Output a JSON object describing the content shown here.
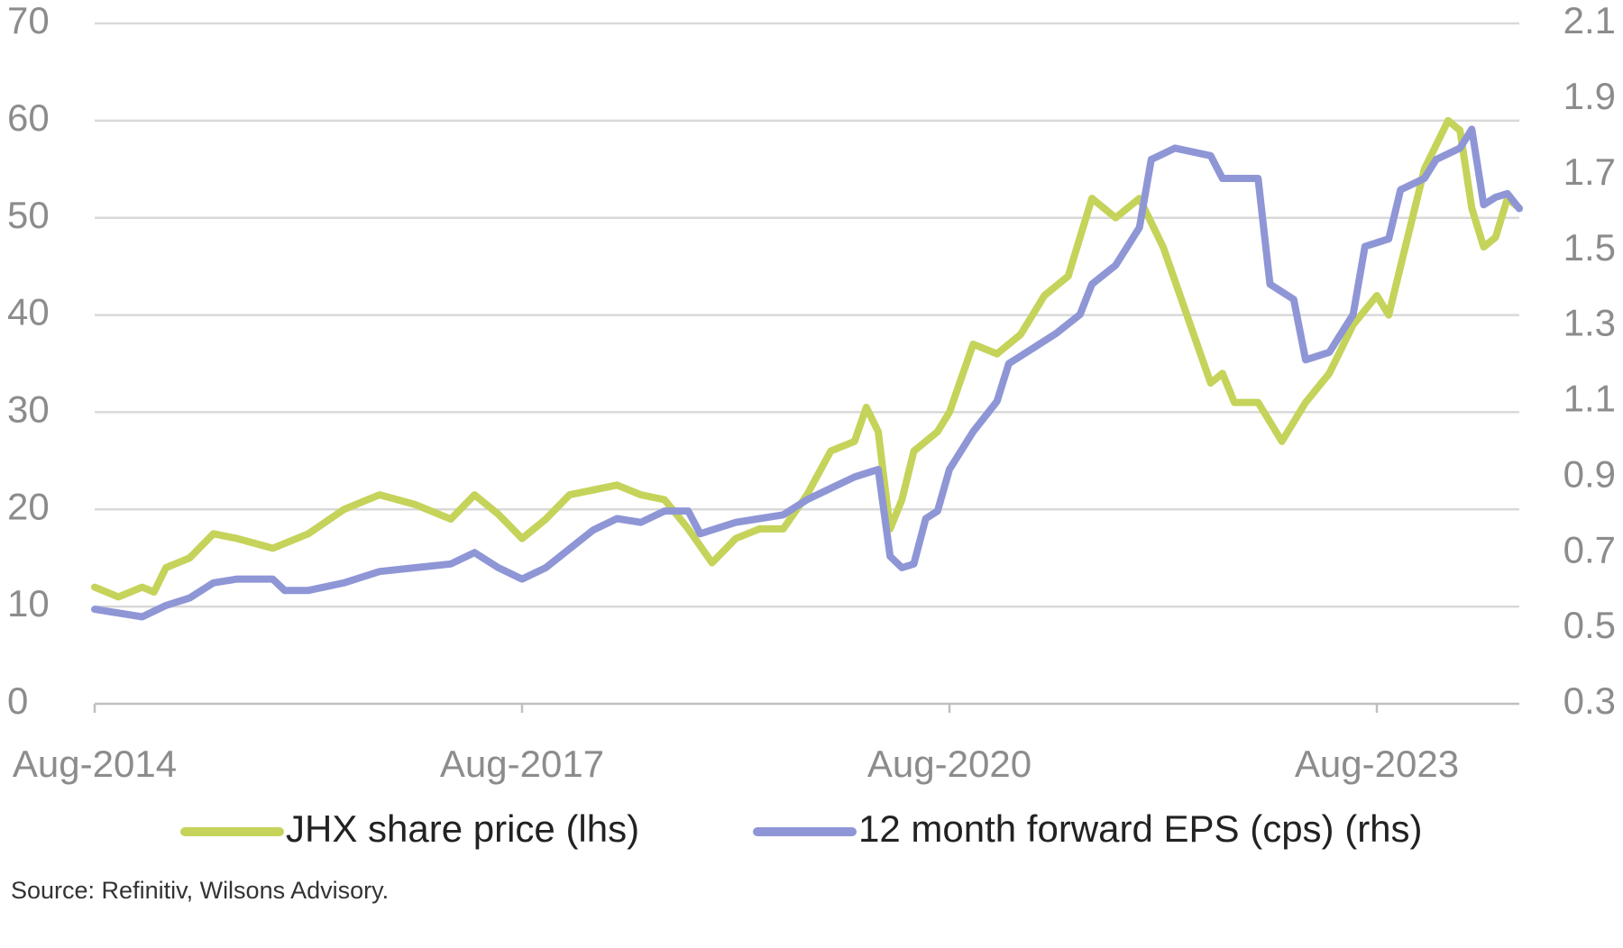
{
  "chart_data": {
    "type": "line",
    "xlim": [
      "2014-08",
      "2024-08"
    ],
    "xticks": [
      {
        "value": "2014-08",
        "label": "Aug-2014"
      },
      {
        "value": "2017-08",
        "label": "Aug-2017"
      },
      {
        "value": "2020-08",
        "label": "Aug-2020"
      },
      {
        "value": "2023-08",
        "label": "Aug-2023"
      }
    ],
    "ylim": [
      0,
      70
    ],
    "yticks": [
      0,
      10,
      20,
      30,
      40,
      50,
      60,
      70
    ],
    "y2lim": [
      0.3,
      2.1
    ],
    "y2ticks": [
      0.3,
      0.5,
      0.7,
      0.9,
      1.1,
      1.3,
      1.5,
      1.7,
      1.9,
      2.1
    ],
    "grid": true,
    "legend": "bottom",
    "note": "Source: Refinitiv, Wilsons Advisory.",
    "series": [
      {
        "name": "JHX share price (lhs)",
        "color": "#c5d35a",
        "axis": "y",
        "x": [
          "2014-08",
          "2014-10",
          "2014-12",
          "2015-01",
          "2015-02",
          "2015-04",
          "2015-06",
          "2015-08",
          "2015-11",
          "2016-02",
          "2016-05",
          "2016-08",
          "2016-11",
          "2017-02",
          "2017-04",
          "2017-06",
          "2017-08",
          "2017-10",
          "2017-12",
          "2018-02",
          "2018-04",
          "2018-06",
          "2018-08",
          "2018-10",
          "2018-12",
          "2019-02",
          "2019-04",
          "2019-06",
          "2019-08",
          "2019-10",
          "2019-12",
          "2020-01",
          "2020-02",
          "2020-03",
          "2020-04",
          "2020-05",
          "2020-06",
          "2020-07",
          "2020-08",
          "2020-10",
          "2020-12",
          "2021-02",
          "2021-04",
          "2021-06",
          "2021-08",
          "2021-10",
          "2021-12",
          "2022-02",
          "2022-04",
          "2022-06",
          "2022-07",
          "2022-08",
          "2022-10",
          "2022-12",
          "2023-02",
          "2023-04",
          "2023-06",
          "2023-08",
          "2023-09",
          "2023-10",
          "2023-12",
          "2024-02",
          "2024-03",
          "2024-04",
          "2024-05",
          "2024-06",
          "2024-07",
          "2024-08"
        ],
        "values": [
          12,
          11,
          12,
          11.5,
          14,
          15,
          17.5,
          17,
          16,
          17.5,
          20,
          21.5,
          20.5,
          19,
          21.5,
          19.5,
          17,
          19,
          21.5,
          22,
          22.5,
          21.5,
          21,
          18,
          14.5,
          17,
          18,
          18,
          21.5,
          26,
          27,
          30.5,
          28,
          18,
          21,
          26,
          27,
          28,
          30,
          37,
          36,
          38,
          42,
          44,
          52,
          50,
          52,
          47,
          40,
          33,
          34,
          31,
          31,
          27,
          31,
          34,
          39,
          42,
          40,
          45,
          55,
          60,
          59,
          51,
          47,
          48,
          52,
          51
        ]
      },
      {
        "name": "12 month forward EPS (cps) (rhs)",
        "color": "#8f96d6",
        "axis": "y2",
        "x": [
          "2014-08",
          "2014-12",
          "2015-02",
          "2015-04",
          "2015-06",
          "2015-08",
          "2015-11",
          "2015-12",
          "2016-02",
          "2016-05",
          "2016-08",
          "2016-11",
          "2017-02",
          "2017-04",
          "2017-06",
          "2017-08",
          "2017-10",
          "2017-12",
          "2018-02",
          "2018-04",
          "2018-06",
          "2018-08",
          "2018-10",
          "2018-11",
          "2019-02",
          "2019-04",
          "2019-06",
          "2019-08",
          "2019-10",
          "2019-12",
          "2020-02",
          "2020-03",
          "2020-04",
          "2020-05",
          "2020-06",
          "2020-07",
          "2020-08",
          "2020-10",
          "2020-12",
          "2021-01",
          "2021-03",
          "2021-05",
          "2021-07",
          "2021-08",
          "2021-10",
          "2021-12",
          "2022-01",
          "2022-03",
          "2022-06",
          "2022-07",
          "2022-10",
          "2022-11",
          "2023-01",
          "2023-02",
          "2023-04",
          "2023-05",
          "2023-06",
          "2023-07",
          "2023-09",
          "2023-10",
          "2023-12",
          "2024-01",
          "2024-03",
          "2024-04",
          "2024-05",
          "2024-06",
          "2024-07",
          "2024-08"
        ],
        "values": [
          0.55,
          0.53,
          0.56,
          0.58,
          0.62,
          0.63,
          0.63,
          0.6,
          0.6,
          0.62,
          0.65,
          0.66,
          0.67,
          0.7,
          0.66,
          0.63,
          0.66,
          0.71,
          0.76,
          0.79,
          0.78,
          0.81,
          0.81,
          0.75,
          0.78,
          0.79,
          0.8,
          0.84,
          0.87,
          0.9,
          0.92,
          0.69,
          0.66,
          0.67,
          0.79,
          0.81,
          0.92,
          1.02,
          1.1,
          1.2,
          1.24,
          1.28,
          1.33,
          1.41,
          1.46,
          1.56,
          1.74,
          1.77,
          1.75,
          1.69,
          1.69,
          1.41,
          1.37,
          1.21,
          1.23,
          1.28,
          1.33,
          1.51,
          1.53,
          1.66,
          1.69,
          1.74,
          1.77,
          1.82,
          1.62,
          1.64,
          1.65,
          1.61
        ]
      }
    ]
  }
}
